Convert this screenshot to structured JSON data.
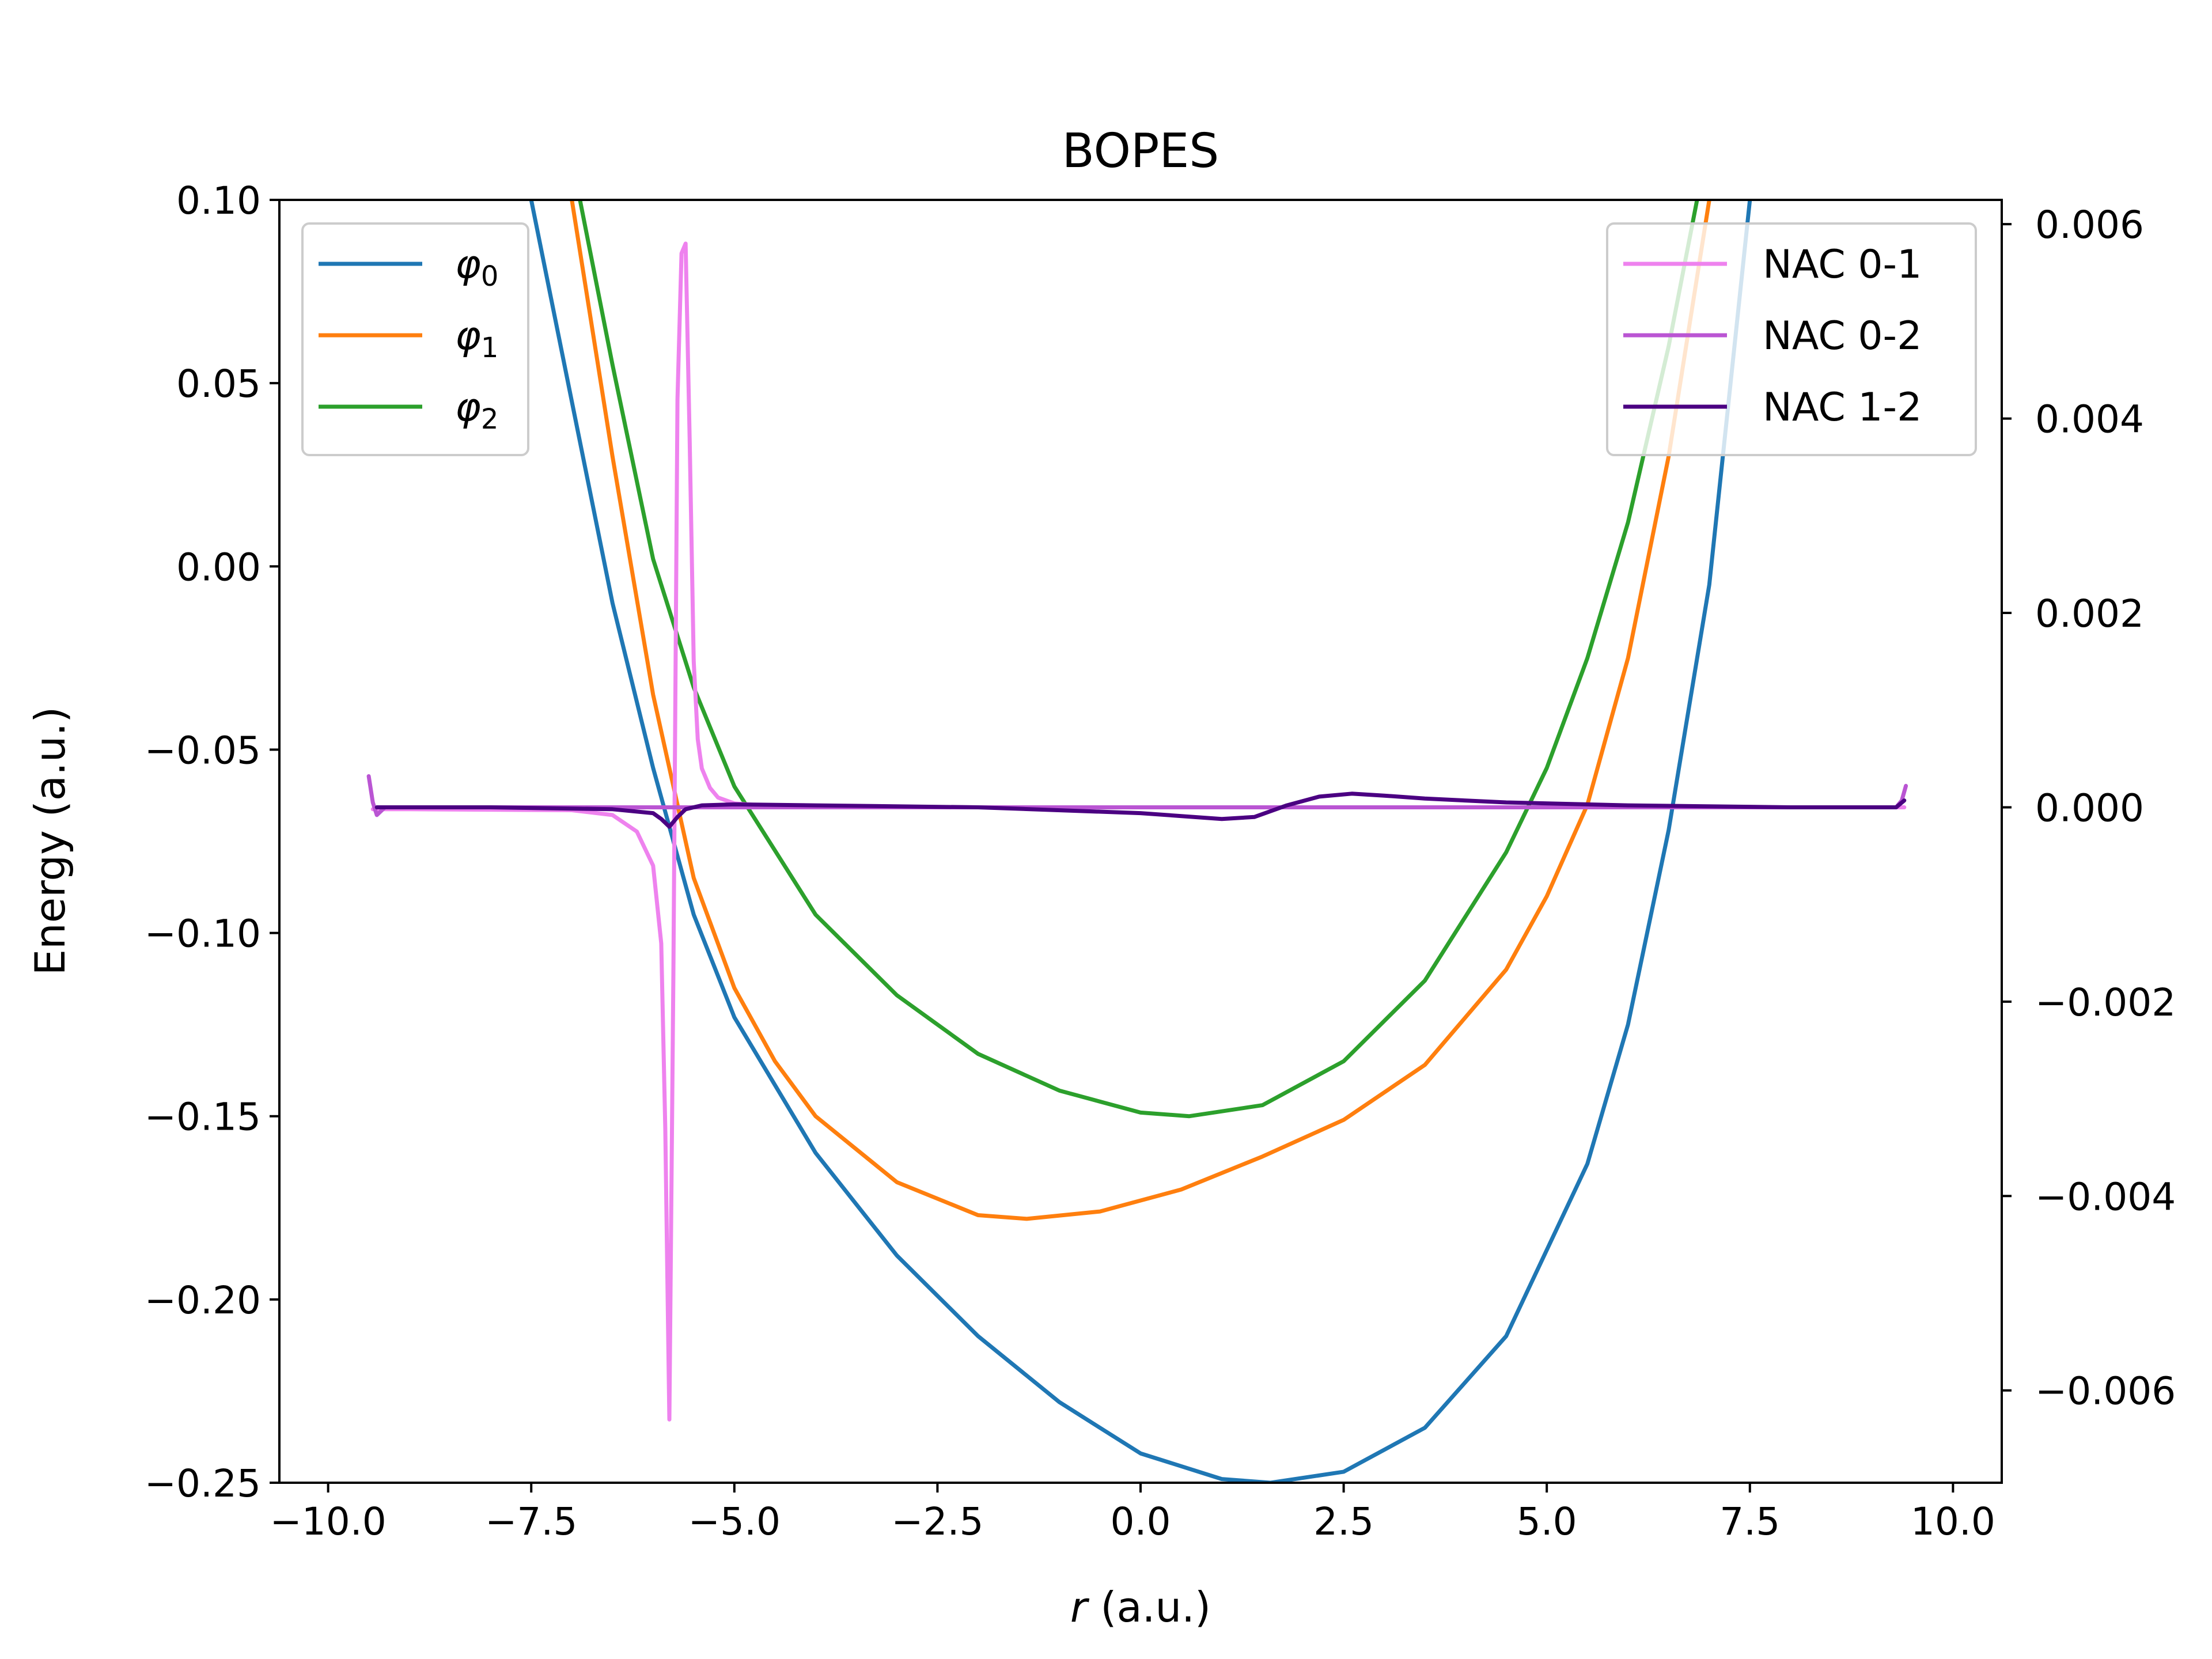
{
  "chart_data": {
    "type": "line",
    "title": "BOPES",
    "xlabel_italic": "r",
    "xlabel_rest": " (a.u.)",
    "ylabel": "Energy (a.u.)",
    "xlim": [
      -10.6,
      10.6
    ],
    "ylim": [
      -0.25,
      0.1
    ],
    "y2lim": [
      -0.00695,
      0.00625
    ],
    "x_ticks": [
      -10,
      -7.5,
      -5,
      -2.5,
      0,
      2.5,
      5,
      7.5,
      10
    ],
    "x_tick_labels": [
      "−10.0",
      "−7.5",
      "−5.0",
      "−2.5",
      "0.0",
      "2.5",
      "5.0",
      "7.5",
      "10.0"
    ],
    "y_ticks": [
      0.1,
      0.05,
      0,
      -0.05,
      -0.1,
      -0.15,
      -0.2,
      -0.25
    ],
    "y_tick_labels": [
      "0.10",
      "0.05",
      "0.00",
      "−0.05",
      "−0.10",
      "−0.15",
      "−0.20",
      "−0.25"
    ],
    "y2_ticks": [
      0.006,
      0.004,
      0.002,
      0,
      -0.002,
      -0.004,
      -0.006
    ],
    "y2_tick_labels": [
      "0.006",
      "0.004",
      "0.002",
      "0.000",
      "−0.002",
      "−0.004",
      "−0.006"
    ],
    "grid": false,
    "left_legend": {
      "placement": "top-left",
      "entries": [
        {
          "symbol": "φ",
          "sub": "0",
          "color": "#1f77b4"
        },
        {
          "symbol": "φ",
          "sub": "1",
          "color": "#ff7f0e"
        },
        {
          "symbol": "φ",
          "sub": "2",
          "color": "#2ca02c"
        }
      ]
    },
    "right_legend": {
      "placement": "top-right",
      "entries": [
        {
          "name": "NAC 0-1",
          "color": "#ee82ee"
        },
        {
          "name": "NAC 0-2",
          "color": "#ba55d3"
        },
        {
          "name": "NAC 1-2",
          "color": "#4b0082"
        }
      ]
    },
    "series": [
      {
        "axis": "left",
        "color": "#1f77b4",
        "x": [
          -7.5,
          -7.0,
          -6.5,
          -6.0,
          -5.5,
          -5.0,
          -4.0,
          -3.0,
          -2.0,
          -1.0,
          0.0,
          1.0,
          1.6,
          2.5,
          3.5,
          4.5,
          5.5,
          6.0,
          6.5,
          7.0,
          7.5
        ],
        "y": [
          0.1,
          0.045,
          -0.01,
          -0.055,
          -0.095,
          -0.123,
          -0.16,
          -0.188,
          -0.21,
          -0.228,
          -0.242,
          -0.249,
          -0.25,
          -0.247,
          -0.235,
          -0.21,
          -0.163,
          -0.125,
          -0.072,
          -0.005,
          0.1
        ]
      },
      {
        "axis": "left",
        "color": "#ff7f0e",
        "x": [
          -7.0,
          -6.5,
          -6.0,
          -5.5,
          -5.0,
          -4.5,
          -4.0,
          -3.0,
          -2.0,
          -1.4,
          -0.5,
          0.5,
          1.5,
          2.5,
          3.5,
          4.5,
          5.0,
          5.5,
          6.0,
          6.5,
          7.0
        ],
        "y": [
          0.1,
          0.03,
          -0.035,
          -0.085,
          -0.115,
          -0.135,
          -0.15,
          -0.168,
          -0.177,
          -0.178,
          -0.176,
          -0.17,
          -0.161,
          -0.151,
          -0.136,
          -0.11,
          -0.09,
          -0.065,
          -0.025,
          0.03,
          0.1
        ]
      },
      {
        "axis": "left",
        "color": "#2ca02c",
        "x": [
          -6.9,
          -6.5,
          -6.0,
          -5.5,
          -5.0,
          -4.0,
          -3.0,
          -2.0,
          -1.0,
          0.0,
          0.6,
          1.5,
          2.5,
          3.5,
          4.5,
          5.0,
          5.5,
          6.0,
          6.5,
          6.85
        ],
        "y": [
          0.1,
          0.055,
          0.002,
          -0.033,
          -0.06,
          -0.095,
          -0.117,
          -0.133,
          -0.143,
          -0.149,
          -0.15,
          -0.147,
          -0.135,
          -0.113,
          -0.078,
          -0.055,
          -0.025,
          0.012,
          0.06,
          0.1
        ]
      },
      {
        "axis": "right",
        "color": "#ee82ee",
        "x": [
          -9.45,
          -9.0,
          -7.0,
          -6.5,
          -6.2,
          -6.0,
          -5.9,
          -5.85,
          -5.8,
          -5.75,
          -5.7,
          -5.65,
          -5.6,
          -5.55,
          -5.5,
          -5.45,
          -5.4,
          -5.3,
          -5.2,
          -5.0,
          -4.5,
          -2.0,
          0.0,
          5.0,
          9.4
        ],
        "y": [
          -2e-05,
          -2e-05,
          -3e-05,
          -8e-05,
          -0.00025,
          -0.0006,
          -0.0014,
          -0.0033,
          -0.0063,
          -0.0017,
          0.0042,
          0.0057,
          0.0058,
          0.0038,
          0.0015,
          0.0007,
          0.0004,
          0.0002,
          0.0001,
          4e-05,
          1e-05,
          0.0,
          0.0,
          0.0,
          0.0
        ]
      },
      {
        "axis": "right",
        "color": "#ba55d3",
        "x": [
          -9.5,
          -9.45,
          -9.4,
          -9.3,
          -9.0,
          -5.0,
          0.0,
          5.0,
          9.3,
          9.37,
          9.42
        ],
        "y": [
          0.00032,
          5e-05,
          -8e-05,
          0.0,
          0.0,
          0.0,
          0.0,
          0.0,
          0.0,
          7e-05,
          0.00022
        ]
      },
      {
        "axis": "right",
        "color": "#4b0082",
        "x": [
          -9.4,
          -8.0,
          -6.5,
          -6.0,
          -5.9,
          -5.8,
          -5.7,
          -5.6,
          -5.4,
          -5.0,
          -4.0,
          -2.0,
          0.0,
          1.0,
          1.4,
          1.8,
          2.2,
          2.6,
          3.0,
          3.5,
          4.5,
          6.0,
          8.0,
          9.3,
          9.4
        ],
        "y": [
          0.0,
          0.0,
          -2e-05,
          -6e-05,
          -0.00012,
          -0.0002,
          -0.0001,
          -2e-05,
          2e-05,
          3e-05,
          2e-05,
          0.0,
          -6e-05,
          -0.00012,
          -0.0001,
          2e-05,
          0.00011,
          0.00014,
          0.00012,
          9e-05,
          5e-05,
          2e-05,
          0.0,
          0.0,
          7e-05
        ]
      }
    ]
  }
}
